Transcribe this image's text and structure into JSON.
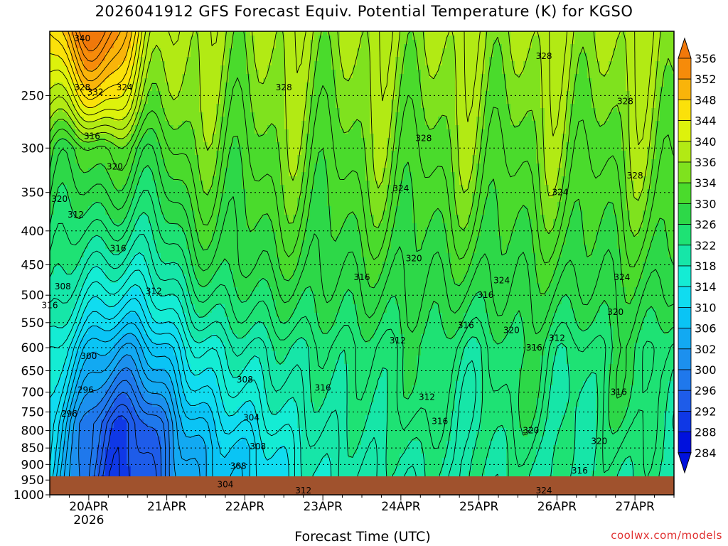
{
  "chart_title": "2026041912 GFS Forecast Equiv. Potential Temperature (K) for KGSO",
  "x_axis_title": "Forecast Time (UTC)",
  "credit": "coolwx.com/models",
  "chart_data": {
    "type": "heatmap",
    "title": "2026041912 GFS Forecast Equiv. Potential Temperature (K) for KGSO",
    "xlabel": "Forecast Time (UTC)",
    "ylabel": "",
    "x_range_hours": [
      -12,
      180
    ],
    "x_ticks": [
      {
        "hour": 0,
        "label": "20APR",
        "sublabel": "2026"
      },
      {
        "hour": 24,
        "label": "21APR"
      },
      {
        "hour": 48,
        "label": "22APR"
      },
      {
        "hour": 72,
        "label": "23APR"
      },
      {
        "hour": 96,
        "label": "24APR"
      },
      {
        "hour": 120,
        "label": "25APR"
      },
      {
        "hour": 144,
        "label": "26APR"
      },
      {
        "hour": 168,
        "label": "27APR"
      }
    ],
    "y_axis": "pressure (hPa), reversed, log scale",
    "y_range": [
      1000,
      200
    ],
    "y_ticks": [
      250,
      300,
      350,
      400,
      450,
      500,
      550,
      600,
      650,
      700,
      750,
      800,
      850,
      900,
      950,
      1000
    ],
    "grid": "dotted horizontal lines at pressure levels",
    "colorbar": {
      "levels": [
        284,
        288,
        292,
        296,
        300,
        302,
        306,
        310,
        314,
        318,
        322,
        326,
        330,
        334,
        336,
        340,
        344,
        348,
        352,
        356
      ],
      "colors": [
        "#0011dd",
        "#0f38e6",
        "#1e5ce9",
        "#1f78ec",
        "#1c90ee",
        "#12a9f2",
        "#0ac4f5",
        "#10dcf0",
        "#14ecd4",
        "#16e6a8",
        "#1ee274",
        "#2dd848",
        "#4adb2c",
        "#7fe21e",
        "#b2ea14",
        "#ddf20c",
        "#fbe10a",
        "#f9b40a",
        "#f68b0a",
        "#f0780a"
      ]
    },
    "contour_labels": [
      {
        "t": -2,
        "p": 205,
        "v": 340
      },
      {
        "t": -2,
        "p": 243,
        "v": 328
      },
      {
        "t": 2,
        "p": 247,
        "v": 332
      },
      {
        "t": 11,
        "p": 243,
        "v": 324
      },
      {
        "t": 1,
        "p": 288,
        "v": 316
      },
      {
        "t": 8,
        "p": 320,
        "v": 320
      },
      {
        "t": -9,
        "p": 358,
        "v": 320
      },
      {
        "t": -4,
        "p": 378,
        "v": 312
      },
      {
        "t": 9,
        "p": 425,
        "v": 316
      },
      {
        "t": -8,
        "p": 485,
        "v": 308
      },
      {
        "t": -12,
        "p": 518,
        "v": 316
      },
      {
        "t": 20,
        "p": 493,
        "v": 312
      },
      {
        "t": 0,
        "p": 618,
        "v": 300
      },
      {
        "t": -6,
        "p": 755,
        "v": 296
      },
      {
        "t": -1,
        "p": 695,
        "v": 296
      },
      {
        "t": 48,
        "p": 670,
        "v": 308
      },
      {
        "t": 50,
        "p": 765,
        "v": 304
      },
      {
        "t": 52,
        "p": 845,
        "v": 308
      },
      {
        "t": 46,
        "p": 905,
        "v": 308
      },
      {
        "t": 42,
        "p": 965,
        "v": 304
      },
      {
        "t": 66,
        "p": 985,
        "v": 312
      },
      {
        "t": 72,
        "p": 690,
        "v": 316
      },
      {
        "t": 60,
        "p": 243,
        "v": 328
      },
      {
        "t": 103,
        "p": 290,
        "v": 328
      },
      {
        "t": 96,
        "p": 345,
        "v": 324
      },
      {
        "t": 100,
        "p": 440,
        "v": 320
      },
      {
        "t": 84,
        "p": 470,
        "v": 316
      },
      {
        "t": 95,
        "p": 585,
        "v": 312
      },
      {
        "t": 116,
        "p": 555,
        "v": 316
      },
      {
        "t": 104,
        "p": 712,
        "v": 312
      },
      {
        "t": 108,
        "p": 775,
        "v": 316
      },
      {
        "t": 122,
        "p": 500,
        "v": 316
      },
      {
        "t": 127,
        "p": 475,
        "v": 324
      },
      {
        "t": 130,
        "p": 565,
        "v": 320
      },
      {
        "t": 137,
        "p": 600,
        "v": 316
      },
      {
        "t": 144,
        "p": 580,
        "v": 312
      },
      {
        "t": 136,
        "p": 800,
        "v": 320
      },
      {
        "t": 140,
        "p": 218,
        "v": 328
      },
      {
        "t": 145,
        "p": 350,
        "v": 324
      },
      {
        "t": 165,
        "p": 255,
        "v": 328
      },
      {
        "t": 168,
        "p": 330,
        "v": 328
      },
      {
        "t": 164,
        "p": 470,
        "v": 324
      },
      {
        "t": 162,
        "p": 530,
        "v": 320
      },
      {
        "t": 163,
        "p": 700,
        "v": 316
      },
      {
        "t": 157,
        "p": 830,
        "v": 320
      },
      {
        "t": 151,
        "p": 920,
        "v": 316
      },
      {
        "t": 140,
        "p": 985,
        "v": 324
      }
    ]
  }
}
